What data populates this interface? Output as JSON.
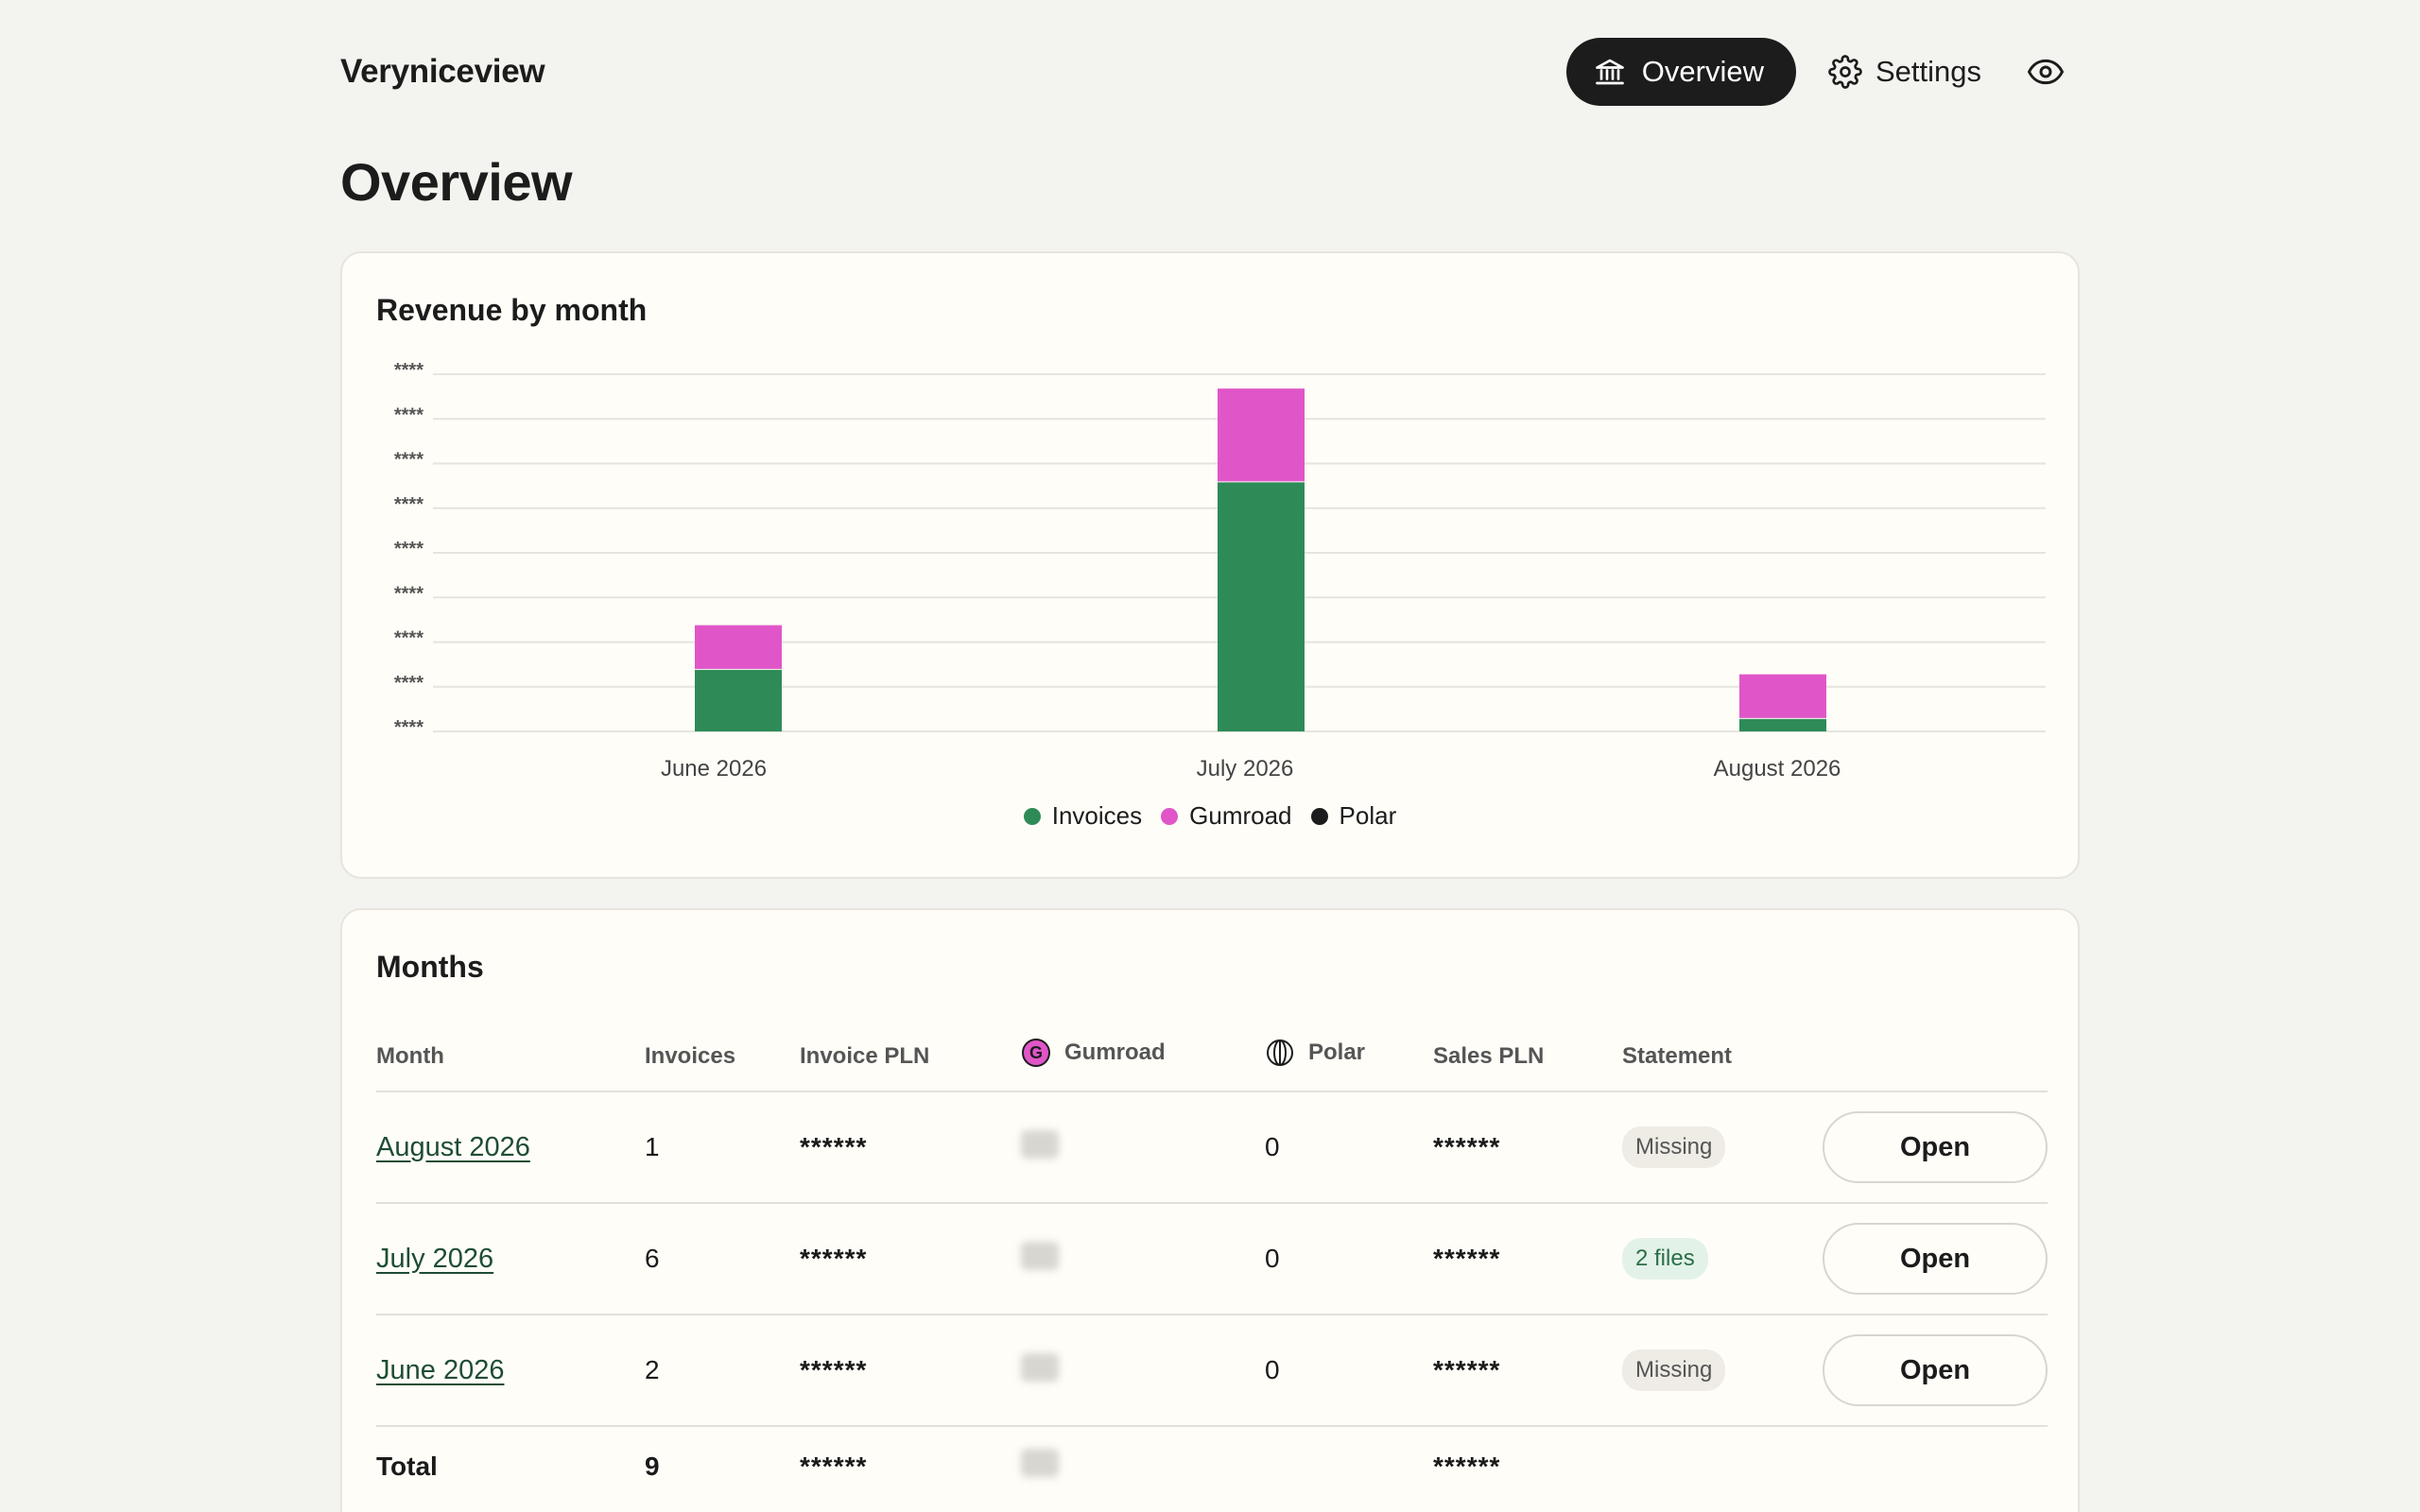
{
  "app": {
    "brand": "Veryniceview"
  },
  "nav": {
    "overview": "Overview",
    "settings": "Settings"
  },
  "page": {
    "title": "Overview"
  },
  "chart_card": {
    "title": "Revenue by month"
  },
  "chart_data": {
    "type": "bar",
    "stacked": true,
    "title": "Revenue by month",
    "categories": [
      "June 2026",
      "July 2026",
      "August 2026"
    ],
    "y_tick_labels": [
      "****",
      "****",
      "****",
      "****",
      "****",
      "****",
      "****",
      "****",
      "****"
    ],
    "ylim": [
      0,
      8
    ],
    "grid": true,
    "legend_position": "bottom-center",
    "series": [
      {
        "name": "Invoices",
        "color": "#2e8b57",
        "values": [
          1.4,
          5.6,
          0.3
        ]
      },
      {
        "name": "Gumroad",
        "color": "#e056c8",
        "values": [
          1.0,
          2.1,
          1.0
        ]
      },
      {
        "name": "Polar",
        "color": "#1c1c1c",
        "values": [
          0,
          0,
          0
        ]
      }
    ]
  },
  "months_card": {
    "title": "Months",
    "columns": {
      "month": "Month",
      "invoices": "Invoices",
      "invoice_pln": "Invoice PLN",
      "gumroad": "Gumroad",
      "polar": "Polar",
      "sales_pln": "Sales PLN",
      "statement": "Statement"
    },
    "rows": [
      {
        "month": "August 2026",
        "invoices": "1",
        "invoice_pln": "******",
        "polar": "0",
        "sales_pln": "******",
        "statement": "Missing",
        "action": "Open"
      },
      {
        "month": "July 2026",
        "invoices": "6",
        "invoice_pln": "******",
        "polar": "0",
        "sales_pln": "******",
        "statement": "2 files",
        "action": "Open"
      },
      {
        "month": "June 2026",
        "invoices": "2",
        "invoice_pln": "******",
        "polar": "0",
        "sales_pln": "******",
        "statement": "Missing",
        "action": "Open"
      }
    ],
    "total": {
      "label": "Total",
      "invoices": "9",
      "invoice_pln": "******",
      "sales_pln": "******"
    }
  },
  "colors": {
    "accent_dark": "#1c1c1c",
    "invoices": "#2e8b57",
    "gumroad": "#e056c8",
    "polar": "#1c1c1c",
    "files_badge": "#2b6e47"
  },
  "icons": {
    "overview": "bank-icon",
    "settings": "gear-icon",
    "privacy": "eye-icon",
    "gumroad": "gumroad-logo-icon",
    "polar": "polar-logo-icon"
  }
}
